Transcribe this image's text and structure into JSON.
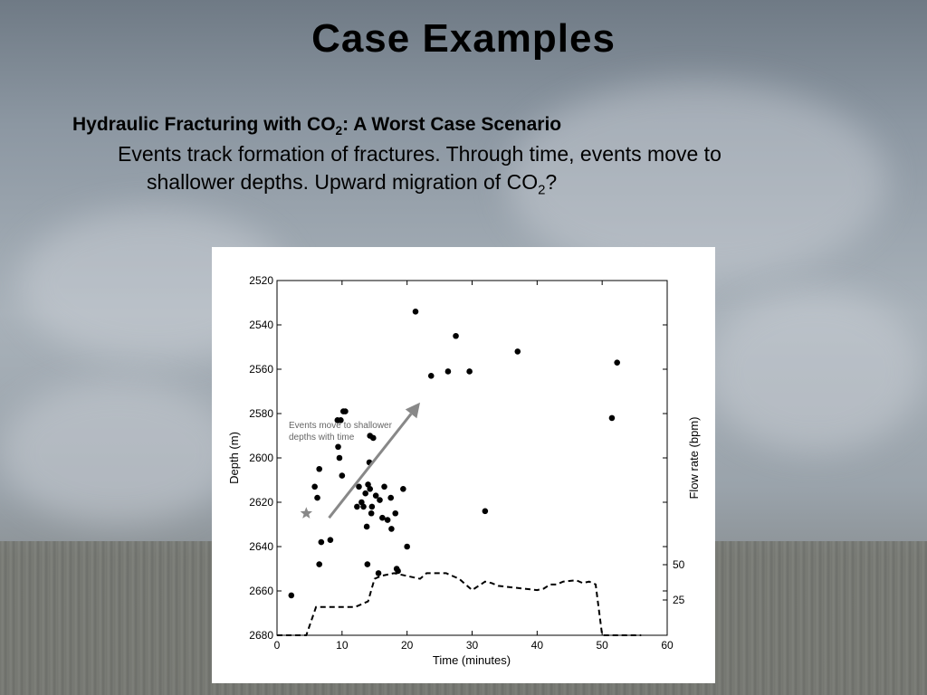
{
  "slide": {
    "title": "Case Examples",
    "subheading_pre": "Hydraulic Fracturing with CO",
    "subheading_sub": "2",
    "subheading_post": ": A Worst Case Scenario",
    "body_line1": "Events track formation of fractures. Through time, events move to",
    "body_line2_pre": "shallower depths. Upward migration of CO",
    "body_line2_sub": "2",
    "body_line2_post": "?"
  },
  "chart_data": {
    "type": "scatter",
    "xlabel": "Time (minutes)",
    "ylabel": "Depth (m)",
    "y2label": "Flow rate (bpm)",
    "xlim": [
      0,
      60
    ],
    "ylim": [
      2680,
      2520
    ],
    "xticks": [
      "0",
      "10",
      "20",
      "30",
      "40",
      "50",
      "60"
    ],
    "yticks": [
      "2520",
      "2540",
      "2560",
      "2580",
      "2600",
      "2620",
      "2640",
      "2660",
      "2680"
    ],
    "y2ticks": [
      "50",
      "25"
    ],
    "annotation_line1": "Events move to shallower",
    "annotation_line2": "depths with time",
    "series": [
      {
        "type": "scatter",
        "x": [
          2.2,
          6.5,
          6.8,
          6.5,
          5.8,
          6.2,
          8.2,
          9.3,
          9.6,
          10.0,
          9.8,
          9.4,
          10.2,
          10.5,
          12.3,
          12.6,
          13.0,
          13.3,
          13.6,
          13.8,
          14.0,
          14.2,
          14.3,
          14.5,
          14.6,
          14.8,
          15.2,
          15.6,
          15.8,
          16.2,
          16.5,
          17.0,
          17.5,
          17.6,
          18.2,
          18.6,
          19.4,
          20.0,
          13.9,
          14.3,
          21.3,
          23.7,
          26.3,
          27.5,
          29.6,
          32.0,
          37.0,
          51.5,
          52.3,
          18.4
        ],
        "y": [
          2662,
          2648,
          2638,
          2605,
          2613,
          2618,
          2637,
          2583,
          2600,
          2608,
          2583,
          2595,
          2579,
          2579,
          2622,
          2613,
          2620,
          2622,
          2616,
          2631,
          2612,
          2602,
          2614,
          2625,
          2622,
          2591,
          2617,
          2652,
          2619,
          2627,
          2613,
          2628,
          2618,
          2632,
          2625,
          2651,
          2614,
          2640,
          2648,
          2590,
          2534,
          2563,
          2561,
          2545,
          2561,
          2624,
          2552,
          2582,
          2557,
          2650
        ]
      },
      {
        "type": "line",
        "name": "",
        "x": [
          0,
          4.5,
          6,
          7,
          12,
          14,
          15,
          16,
          18,
          20,
          22,
          23,
          26,
          28,
          30,
          32,
          33,
          34,
          36,
          38,
          40,
          41,
          42,
          43,
          44,
          46,
          47,
          48,
          49,
          50,
          56
        ],
        "y": [
          0,
          0,
          20,
          20,
          20,
          24,
          40,
          42,
          44,
          42,
          40,
          44,
          44,
          40,
          32,
          38,
          37,
          35,
          34,
          33,
          32,
          33,
          36,
          36,
          38,
          39,
          37,
          38,
          36,
          0,
          0
        ]
      }
    ],
    "arrow": {
      "from": [
        8,
        2627
      ],
      "to": [
        22,
        2575
      ]
    },
    "star": {
      "x": 4.5,
      "y": 2625
    }
  }
}
